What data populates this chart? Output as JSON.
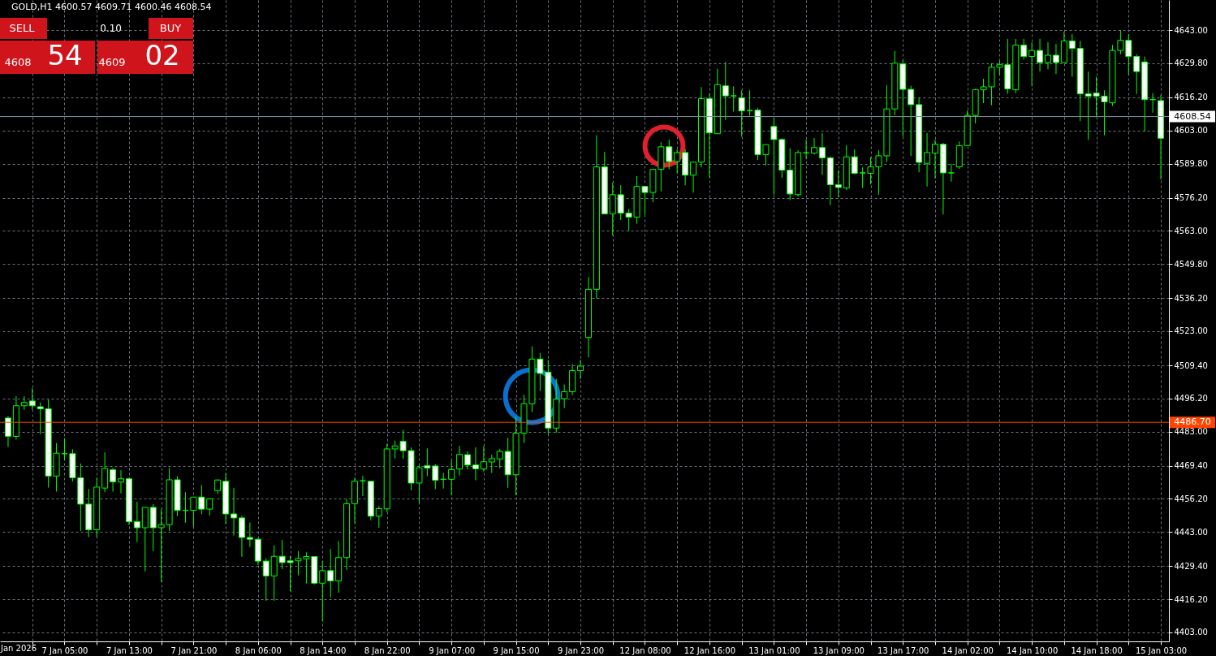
{
  "chart_data": {
    "type": "candlestick",
    "title": "GOLD,H1",
    "subtitle": "4600.57 4609.71 4600.46 4608.54",
    "annotations": [
      "SELL",
      "0.10",
      "BUY",
      "4608",
      "54",
      "4609",
      "02",
      "Jan 2026"
    ],
    "categories": [
      null,
      null,
      null,
      null,
      null,
      null,
      null,
      "7 Jan 05:00",
      null,
      null,
      null,
      null,
      null,
      null,
      null,
      "7 Jan 13:00",
      null,
      null,
      null,
      null,
      null,
      null,
      null,
      "7 Jan 21:00",
      null,
      null,
      null,
      null,
      null,
      null,
      null,
      "8 Jan 06:00",
      null,
      null,
      null,
      null,
      null,
      null,
      null,
      "8 Jan 14:00",
      null,
      null,
      null,
      null,
      null,
      null,
      null,
      "8 Jan 22:00",
      null,
      null,
      null,
      null,
      null,
      null,
      null,
      "9 Jan 07:00",
      null,
      null,
      null,
      null,
      null,
      null,
      null,
      "9 Jan 15:00",
      null,
      null,
      null,
      null,
      null,
      null,
      null,
      "9 Jan 23:00",
      null,
      null,
      null,
      null,
      null,
      null,
      null,
      "12 Jan 08:00",
      null,
      null,
      null,
      null,
      null,
      null,
      null,
      "12 Jan 16:00",
      null,
      null,
      null,
      null,
      null,
      null,
      null,
      "13 Jan 01:00",
      null,
      null,
      null,
      null,
      null,
      null,
      null,
      "13 Jan 09:00",
      null,
      null,
      null,
      null,
      null,
      null,
      null,
      "13 Jan 17:00",
      null,
      null,
      null,
      null,
      null,
      null,
      null,
      "14 Jan 02:00",
      null,
      null,
      null,
      null,
      null,
      null,
      null,
      "14 Jan 10:00",
      null,
      null,
      null,
      null,
      null,
      null,
      null,
      "14 Jan 18:00",
      null,
      null,
      null,
      null,
      null,
      null,
      null,
      "15 Jan 03:00"
    ],
    "ohlc": [
      [
        4488.4,
        4489.2,
        4476.9,
        4481.1
      ],
      [
        4481.1,
        4497.1,
        4479.8,
        4493.3
      ],
      [
        4493.3,
        4497.1,
        4491.7,
        4494.6
      ],
      [
        4495.2,
        4500.3,
        4491.7,
        4493.3
      ],
      [
        4492.9,
        4494.6,
        4482.0,
        4492.1
      ],
      [
        4492.1,
        4495.7,
        4460.7,
        4465.3
      ],
      [
        4465.3,
        4478.4,
        4459.1,
        4474.4
      ],
      [
        4474.2,
        4480.3,
        4471.7,
        4474.2
      ],
      [
        4474.2,
        4476.0,
        4463.1,
        4464.6
      ],
      [
        4464.6,
        4470.3,
        4443.4,
        4454.1
      ],
      [
        4454.1,
        4460.2,
        4441.0,
        4443.9
      ],
      [
        4443.9,
        4464.7,
        4441.0,
        4460.9
      ],
      [
        4460.5,
        4474.7,
        4458.8,
        4468.3
      ],
      [
        4467.8,
        4468.5,
        4459.1,
        4463.0
      ],
      [
        4462.9,
        4467.6,
        4458.4,
        4464.2
      ],
      [
        4464.2,
        4464.7,
        4445.8,
        4447.1
      ],
      [
        4447.1,
        4455.0,
        4439.0,
        4444.7
      ],
      [
        4444.7,
        4452.8,
        4427.3,
        4452.8
      ],
      [
        4452.8,
        4454.1,
        4435.4,
        4444.7
      ],
      [
        4444.7,
        4452.1,
        4423.2,
        4445.9
      ],
      [
        4445.9,
        4468.5,
        4443.4,
        4463.8
      ],
      [
        4463.8,
        4465.2,
        4449.4,
        4451.6
      ],
      [
        4451.6,
        4458.8,
        4446.7,
        4451.6
      ],
      [
        4451.6,
        4456.9,
        4445.1,
        4456.9
      ],
      [
        4456.9,
        4461.7,
        4450.1,
        4452.1
      ],
      [
        4452.1,
        4456.2,
        4449.6,
        4456.2
      ],
      [
        4459.5,
        4464.0,
        4458.1,
        4463.7
      ],
      [
        4463.2,
        4466.5,
        4446.2,
        4450.2
      ],
      [
        4450.2,
        4460.5,
        4441.6,
        4448.6
      ],
      [
        4448.6,
        4449.5,
        4433.1,
        4440.8
      ],
      [
        4440.8,
        4446.8,
        4437.0,
        4440.1
      ],
      [
        4440.1,
        4440.6,
        4429.8,
        4431.4
      ],
      [
        4431.4,
        4432.5,
        4415.6,
        4425.5
      ],
      [
        4425.5,
        4437.7,
        4415.6,
        4433.3
      ],
      [
        4433.3,
        4439.8,
        4428.2,
        4430.8
      ],
      [
        4431.5,
        4433.4,
        4419.4,
        4430.8
      ],
      [
        4431.5,
        4435.4,
        4425.7,
        4432.4
      ],
      [
        4432.3,
        4434.9,
        4422.5,
        4433.2
      ],
      [
        4433.2,
        4433.2,
        4422.1,
        4422.6
      ],
      [
        4422.6,
        4431.4,
        4407.4,
        4427.6
      ],
      [
        4427.6,
        4436.2,
        4416.9,
        4423.5
      ],
      [
        4423.5,
        4439.4,
        4418.8,
        4432.8
      ],
      [
        4432.8,
        4456.2,
        4427.9,
        4454.3
      ],
      [
        4454.3,
        4464.6,
        4446.5,
        4463.2
      ],
      [
        4463.4,
        4465.4,
        4457.3,
        4463.4
      ],
      [
        4463.2,
        4463.2,
        4447.6,
        4449.3
      ],
      [
        4449.3,
        4453.3,
        4444.7,
        4452.3
      ],
      [
        4452.2,
        4478.1,
        4450.9,
        4476.1
      ],
      [
        4476.1,
        4479.4,
        4472.3,
        4477.3
      ],
      [
        4479.1,
        4483.7,
        4472.1,
        4475.4
      ],
      [
        4475.4,
        4476.7,
        4459.6,
        4462.5
      ],
      [
        4462.5,
        4469.5,
        4454.4,
        4468.6
      ],
      [
        4469.4,
        4476.3,
        4465.2,
        4468.5
      ],
      [
        4469.3,
        4470.0,
        4460.0,
        4463.6
      ],
      [
        4464.0,
        4466.6,
        4460.3,
        4464.0
      ],
      [
        4464.0,
        4471.5,
        4457.6,
        4467.9
      ],
      [
        4468.1,
        4477.3,
        4465.5,
        4473.9
      ],
      [
        4473.8,
        4475.1,
        4467.9,
        4469.7
      ],
      [
        4469.7,
        4476.7,
        4463.6,
        4468.2
      ],
      [
        4468.1,
        4477.3,
        4467.1,
        4471.0
      ],
      [
        4470.9,
        4473.8,
        4466.5,
        4472.2
      ],
      [
        4472.1,
        4476.0,
        4468.4,
        4475.1
      ],
      [
        4475.1,
        4480.5,
        4460.6,
        4465.8
      ],
      [
        4465.8,
        4488.9,
        4457.6,
        4482.4
      ],
      [
        4482.4,
        4497.7,
        4478.5,
        4494.1
      ],
      [
        4494.1,
        4517.0,
        4490.8,
        4511.9
      ],
      [
        4511.9,
        4514.3,
        4499.2,
        4506.2
      ],
      [
        4506.7,
        4511.6,
        4481.9,
        4484.4
      ],
      [
        4484.4,
        4504.0,
        4482.6,
        4495.9
      ],
      [
        4496.1,
        4501.8,
        4492.4,
        4498.9
      ],
      [
        4498.9,
        4509.9,
        4497.5,
        4507.3
      ],
      [
        4507.3,
        4511.6,
        4504.0,
        4509.1
      ],
      [
        4520.5,
        4544.6,
        4512.6,
        4539.7
      ],
      [
        4539.7,
        4601.1,
        4536.0,
        4588.5
      ],
      [
        4588.5,
        4594.5,
        4569.8,
        4569.8
      ],
      [
        4569.8,
        4582.3,
        4561.2,
        4577.4
      ],
      [
        4577.4,
        4581.2,
        4567.3,
        4570.1
      ],
      [
        4570.1,
        4571.7,
        4563.0,
        4568.5
      ],
      [
        4568.5,
        4584.8,
        4565.8,
        4580.7
      ],
      [
        4580.7,
        4580.7,
        4569.5,
        4578.3
      ],
      [
        4578.3,
        4587.5,
        4574.4,
        4587.5
      ],
      [
        4587.5,
        4598.3,
        4578.8,
        4596.5
      ],
      [
        4596.5,
        4599.4,
        4587.5,
        4590.6
      ],
      [
        4590.6,
        4595.6,
        4585.9,
        4594.2
      ],
      [
        4594.2,
        4595.6,
        4581.2,
        4585.2
      ],
      [
        4585.2,
        4590.4,
        4578.2,
        4590.4
      ],
      [
        4590.4,
        4620.3,
        4588.3,
        4615.7
      ],
      [
        4615.7,
        4617.5,
        4584.2,
        4602.1
      ],
      [
        4601.7,
        4627.6,
        4601.7,
        4621.3
      ],
      [
        4620.8,
        4630.3,
        4607.2,
        4616.8
      ],
      [
        4616.8,
        4620.6,
        4610.5,
        4616.8
      ],
      [
        4616.0,
        4619.0,
        4600.5,
        4610.8
      ],
      [
        4611.0,
        4619.0,
        4608.9,
        4611.0
      ],
      [
        4611.1,
        4611.9,
        4591.2,
        4593.4
      ],
      [
        4593.4,
        4597.4,
        4589.1,
        4597.4
      ],
      [
        4604.6,
        4608.0,
        4577.4,
        4599.4
      ],
      [
        4599.4,
        4599.9,
        4584.1,
        4587.2
      ],
      [
        4587.2,
        4595.9,
        4575.2,
        4577.7
      ],
      [
        4577.4,
        4595.1,
        4576.7,
        4594.2
      ],
      [
        4594.1,
        4599.4,
        4591.5,
        4594.1
      ],
      [
        4594.0,
        4600.0,
        4593.5,
        4596.2
      ],
      [
        4596.2,
        4602.0,
        4585.3,
        4592.1
      ],
      [
        4592.1,
        4592.6,
        4573.3,
        4581.4
      ],
      [
        4581.4,
        4587.2,
        4576.5,
        4580.3
      ],
      [
        4580.1,
        4597.2,
        4579.3,
        4592.5
      ],
      [
        4592.5,
        4595.5,
        4585.5,
        4585.9
      ],
      [
        4586.1,
        4588.3,
        4580.1,
        4586.1
      ],
      [
        4585.9,
        4592.4,
        4581.5,
        4588.5
      ],
      [
        4588.5,
        4595.1,
        4577.4,
        4592.9
      ],
      [
        4592.9,
        4621.1,
        4590.4,
        4611.6
      ],
      [
        4611.6,
        4634.7,
        4609.1,
        4629.8
      ],
      [
        4629.5,
        4631.2,
        4600.5,
        4619.4
      ],
      [
        4619.4,
        4620.8,
        4592.8,
        4613.3
      ],
      [
        4613.3,
        4616.2,
        4586.3,
        4590.3
      ],
      [
        4589.9,
        4602.0,
        4580.7,
        4594.2
      ],
      [
        4594.0,
        4599.4,
        4583.9,
        4597.5
      ],
      [
        4597.5,
        4598.0,
        4569.6,
        4586.1
      ],
      [
        4586.1,
        4589.7,
        4582.6,
        4586.1
      ],
      [
        4588.5,
        4598.6,
        4587.7,
        4596.9
      ],
      [
        4597.0,
        4611.0,
        4596.8,
        4609.0
      ],
      [
        4609.0,
        4619.6,
        4605.8,
        4619.3
      ],
      [
        4619.2,
        4623.6,
        4613.9,
        4620.4
      ],
      [
        4620.4,
        4629.8,
        4613.1,
        4628.2
      ],
      [
        4628.2,
        4630.8,
        4625.2,
        4629.2
      ],
      [
        4629.2,
        4639.5,
        4617.6,
        4619.6
      ],
      [
        4619.2,
        4639.5,
        4617.9,
        4637.0
      ],
      [
        4637.0,
        4639.5,
        4631.2,
        4632.5
      ],
      [
        4632.5,
        4638.1,
        4620.6,
        4634.9
      ],
      [
        4634.9,
        4639.5,
        4626.5,
        4630.1
      ],
      [
        4630.1,
        4638.2,
        4627.4,
        4633.0
      ],
      [
        4633.0,
        4637.5,
        4625.5,
        4630.1
      ],
      [
        4630.1,
        4642.4,
        4630.1,
        4638.7
      ],
      [
        4638.7,
        4641.4,
        4624.4,
        4635.7
      ],
      [
        4635.7,
        4638.7,
        4606.7,
        4617.6
      ],
      [
        4617.6,
        4626.5,
        4599.3,
        4616.7
      ],
      [
        4617.9,
        4624.4,
        4608.3,
        4616.7
      ],
      [
        4616.7,
        4619.0,
        4601.1,
        4614.4
      ],
      [
        4614.0,
        4637.1,
        4612.8,
        4634.9
      ],
      [
        4634.9,
        4643.0,
        4633.3,
        4638.9
      ],
      [
        4638.9,
        4641.4,
        4625.3,
        4632.5
      ],
      [
        4632.5,
        4633.3,
        4617.6,
        4626.5
      ],
      [
        4630.3,
        4632.5,
        4602.6,
        4615.3
      ],
      [
        4615.3,
        4617.9,
        4610.1,
        4615.3
      ],
      [
        4614.9,
        4617.2,
        4583.5,
        4599.9
      ]
    ],
    "color": "#00ff00",
    "ylim": [
      4399.4,
      4655.0
    ],
    "yticks": [
      {
        "value": 4403.0,
        "label": "4403.00"
      },
      {
        "value": 4416.2,
        "label": "4416.20"
      },
      {
        "value": 4429.4,
        "label": "4429.40"
      },
      {
        "value": 4443.0,
        "label": "4443.00"
      },
      {
        "value": 4456.2,
        "label": "4456.20"
      },
      {
        "value": 4469.4,
        "label": "4469.40"
      },
      {
        "value": 4483.0,
        "label": "4483.00"
      },
      {
        "value": 4496.2,
        "label": "4496.20"
      },
      {
        "value": 4509.4,
        "label": "4509.40"
      },
      {
        "value": 4523.0,
        "label": "4523.00"
      },
      {
        "value": 4536.2,
        "label": "4536.20"
      },
      {
        "value": 4549.8,
        "label": "4549.80"
      },
      {
        "value": 4563.0,
        "label": "4563.00"
      },
      {
        "value": 4576.2,
        "label": "4576.20"
      },
      {
        "value": 4589.8,
        "label": "4589.80"
      },
      {
        "value": 4603.0,
        "label": "4603.00"
      },
      {
        "value": 4616.2,
        "label": "4616.20"
      },
      {
        "value": 4629.8,
        "label": "4629.80"
      },
      {
        "value": 4643.0,
        "label": "4643.00"
      }
    ],
    "ref_lines": [
      {
        "axis": "y",
        "value": 4608.54,
        "label": "4608.54",
        "color": "#8090a0"
      },
      {
        "axis": "y",
        "value": 4486.7,
        "label": "4486.70",
        "color": "#ff4500"
      }
    ],
    "grid": true
  }
}
